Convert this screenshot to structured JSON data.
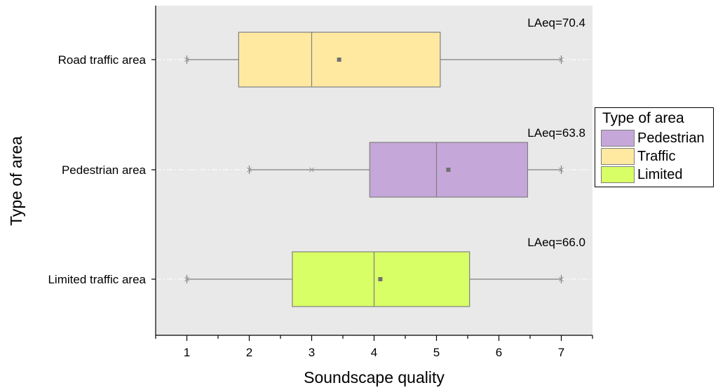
{
  "chart_data": {
    "type": "boxplot",
    "orientation": "horizontal",
    "xlabel": "Soundscape quality",
    "ylabel": "Type of area",
    "xlim": [
      0.5,
      7.5
    ],
    "xticks": [
      1,
      2,
      3,
      4,
      5,
      6,
      7
    ],
    "xtick_labels": [
      "1",
      "2",
      "3",
      "4",
      "5",
      "6",
      "7"
    ],
    "grid": false,
    "background": "#e9e9e9",
    "categories": [
      "Road traffic area",
      "Pedestrian area",
      "Limited traffic area"
    ],
    "series": [
      {
        "category": "Road traffic area",
        "legend_name": "Traffic",
        "color": "#ffe9a1",
        "min": 1,
        "q1": 1.83,
        "median": 3,
        "q3": 5.06,
        "max": 7,
        "mean": 3.44,
        "outliers": [],
        "annotation": "LAeq=70.4"
      },
      {
        "category": "Pedestrian area",
        "legend_name": "Pedestrian",
        "color": "#c6a7d9",
        "min": 2,
        "q1": 3.93,
        "median": 5,
        "q3": 6.46,
        "max": 7,
        "mean": 5.19,
        "outliers": [
          3
        ],
        "annotation": "LAeq=63.8"
      },
      {
        "category": "Limited traffic area",
        "legend_name": "Limited",
        "color": "#d9ff66",
        "min": 1,
        "q1": 2.69,
        "median": 4,
        "q3": 5.53,
        "max": 7,
        "mean": 4.1,
        "outliers": [],
        "annotation": "LAeq=66.0"
      }
    ],
    "legend": {
      "title": "Type of area",
      "placement": "right",
      "entries": [
        {
          "label": "Pedestrian",
          "color": "#c6a7d9"
        },
        {
          "label": "Traffic",
          "color": "#ffe9a1"
        },
        {
          "label": "Limited",
          "color": "#d9ff66"
        }
      ]
    }
  }
}
